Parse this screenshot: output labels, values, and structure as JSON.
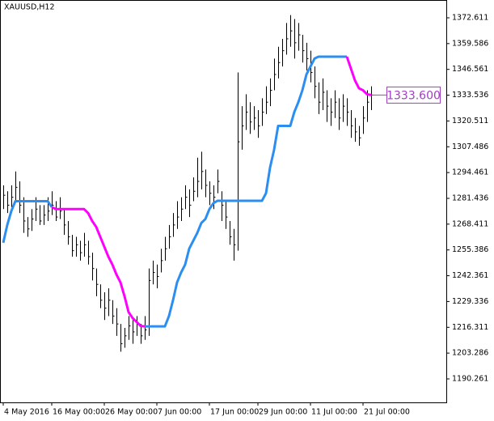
{
  "chart_data": {
    "type": "ohlc",
    "title": "XAUUSD,H12",
    "xlim": [
      -0.8,
      109.6
    ],
    "xticks": [
      {
        "value": 0,
        "label": "4 May 2016"
      },
      {
        "value": 12,
        "label": "16 May 00:00"
      },
      {
        "value": 25,
        "label": "26 May 00:00"
      },
      {
        "value": 38,
        "label": "7 Jun 00:00"
      },
      {
        "value": 51,
        "label": "17 Jun 00:00"
      },
      {
        "value": 63,
        "label": "29 Jun 00:00"
      },
      {
        "value": 76,
        "label": "11 Jul 00:00"
      },
      {
        "value": 89,
        "label": "21 Jul 00:00"
      }
    ],
    "ylim": [
      1178.4,
      1381.6
    ],
    "yticks": [
      1372.611,
      1359.586,
      1346.561,
      1333.536,
      1320.511,
      1307.486,
      1294.461,
      1281.436,
      1268.411,
      1255.386,
      1242.361,
      1229.336,
      1216.311,
      1203.286,
      1190.261
    ],
    "bar_color": "#000000",
    "high": [
      1288,
      1285,
      1288,
      1295,
      1290,
      1282,
      1272,
      1276,
      1282,
      1278,
      1278,
      1282,
      1285,
      1280,
      1282,
      1276,
      1270,
      1263,
      1262,
      1260,
      1264,
      1260,
      1254,
      1246,
      1238,
      1234,
      1236,
      1230,
      1226,
      1218,
      1216,
      1222,
      1220,
      1222,
      1218,
      1222,
      1246,
      1250,
      1248,
      1256,
      1262,
      1268,
      1274,
      1280,
      1282,
      1288,
      1286,
      1292,
      1302,
      1305,
      1296,
      1290,
      1288,
      1296,
      1285,
      1280,
      1270,
      1266,
      1345,
      1328,
      1334,
      1330,
      1328,
      1326,
      1332,
      1338,
      1342,
      1352,
      1358,
      1362,
      1370,
      1374,
      1372,
      1370,
      1364,
      1360,
      1356,
      1348,
      1340,
      1342,
      1336,
      1332,
      1336,
      1332,
      1334,
      1332,
      1326,
      1322,
      1318,
      1328,
      1336,
      1338
    ],
    "low": [
      1276,
      1274,
      1277,
      1280,
      1274,
      1264,
      1262,
      1265,
      1270,
      1268,
      1268,
      1270,
      1273,
      1270,
      1271,
      1263,
      1258,
      1252,
      1252,
      1250,
      1252,
      1248,
      1240,
      1232,
      1226,
      1220,
      1222,
      1218,
      1212,
      1204,
      1206,
      1210,
      1208,
      1212,
      1208,
      1210,
      1212,
      1238,
      1236,
      1244,
      1250,
      1256,
      1262,
      1266,
      1270,
      1276,
      1272,
      1280,
      1282,
      1286,
      1282,
      1278,
      1276,
      1284,
      1270,
      1266,
      1258,
      1250,
      1255,
      1306,
      1316,
      1314,
      1316,
      1312,
      1318,
      1324,
      1328,
      1336,
      1342,
      1348,
      1354,
      1358,
      1352,
      1356,
      1350,
      1346,
      1340,
      1332,
      1324,
      1326,
      1320,
      1318,
      1322,
      1316,
      1320,
      1318,
      1312,
      1310,
      1308,
      1314,
      1320,
      1326
    ],
    "close": [
      1283,
      1278,
      1282,
      1287,
      1278,
      1270,
      1266,
      1271,
      1276,
      1270,
      1273,
      1275,
      1278,
      1272,
      1275,
      1268,
      1262,
      1255,
      1258,
      1254,
      1258,
      1252,
      1246,
      1238,
      1230,
      1226,
      1230,
      1222,
      1218,
      1208,
      1212,
      1217,
      1214,
      1218,
      1212,
      1215,
      1240,
      1244,
      1242,
      1250,
      1256,
      1262,
      1268,
      1272,
      1276,
      1282,
      1278,
      1285,
      1290,
      1295,
      1288,
      1284,
      1282,
      1290,
      1278,
      1272,
      1262,
      1258,
      1310,
      1318,
      1325,
      1320,
      1322,
      1318,
      1325,
      1330,
      1336,
      1344,
      1350,
      1356,
      1362,
      1366,
      1360,
      1364,
      1356,
      1352,
      1345,
      1338,
      1330,
      1335,
      1328,
      1325,
      1330,
      1322,
      1328,
      1325,
      1318,
      1315,
      1312,
      1322,
      1330,
      1333.6
    ],
    "lines": [
      {
        "color": "#2b8ef0",
        "values": [
          1259,
          1268,
          1275,
          1280,
          1280,
          1280,
          1280,
          1280,
          1280,
          1280,
          1280,
          1280,
          1277,
          null,
          null,
          null,
          null,
          null,
          null,
          null,
          null,
          null,
          null,
          null,
          null,
          null,
          null,
          null,
          null,
          null,
          null,
          null,
          null,
          null,
          null,
          1216.8,
          1216.8,
          1216.8,
          1216.8,
          1216.8,
          1216.8,
          1222,
          1230,
          1239,
          1244,
          1248,
          1256,
          1260,
          1264,
          1269,
          1271,
          1276,
          1279,
          1280.2,
          1280.2,
          1280.2,
          1280.2,
          1280.2,
          1280.2,
          1280.2,
          1280.2,
          1280.2,
          1280.2,
          1280.2,
          1280.2,
          1284,
          1297,
          1306,
          1318,
          1318,
          1318,
          1318,
          1325,
          1330,
          1336,
          1344,
          1348,
          1352,
          1353,
          1353,
          1353,
          1353,
          1353,
          1353,
          1353,
          1353,
          null,
          null,
          null,
          null,
          null,
          null
        ]
      },
      {
        "color": "#ff00ff",
        "values": [
          null,
          null,
          null,
          null,
          null,
          null,
          null,
          null,
          null,
          null,
          null,
          null,
          1277,
          1276,
          1276,
          1276,
          1276,
          1276,
          1276,
          1276,
          1276,
          1274,
          1270,
          1267,
          1262,
          1257,
          1252,
          1248,
          1243,
          1239,
          1232,
          1224,
          1221,
          1219,
          1217,
          1216.8,
          null,
          null,
          null,
          null,
          null,
          null,
          null,
          null,
          null,
          null,
          null,
          null,
          null,
          null,
          null,
          null,
          null,
          null,
          null,
          null,
          null,
          null,
          null,
          null,
          null,
          null,
          null,
          null,
          null,
          null,
          null,
          null,
          null,
          null,
          null,
          null,
          null,
          null,
          null,
          null,
          null,
          null,
          null,
          null,
          null,
          null,
          null,
          null,
          null,
          1353,
          1347,
          1341,
          1337,
          1336,
          1334,
          1333.6
        ]
      }
    ],
    "current_price": {
      "value": 1333.6,
      "label": "1333.600",
      "color": "#a040c0"
    }
  }
}
